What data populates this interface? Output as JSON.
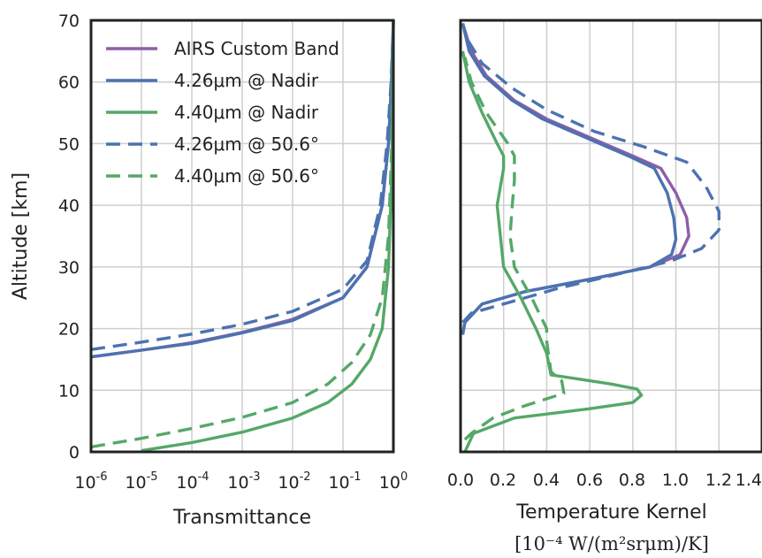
{
  "chart_data": [
    {
      "type": "line",
      "panel": "left",
      "xlabel": "Transmittance",
      "ylabel": "Altitude [km]",
      "xscale": "log",
      "xlim": [
        1e-06,
        1
      ],
      "ylim": [
        0,
        70
      ],
      "xtick_labels": [
        {
          "base": "10",
          "exp": "-6",
          "value": 1e-06
        },
        {
          "base": "10",
          "exp": "-5",
          "value": 1e-05
        },
        {
          "base": "10",
          "exp": "-4",
          "value": 0.0001
        },
        {
          "base": "10",
          "exp": "-3",
          "value": 0.001
        },
        {
          "base": "10",
          "exp": "-2",
          "value": 0.01
        },
        {
          "base": "10",
          "exp": "-1",
          "value": 0.1
        },
        {
          "base": "10",
          "exp": "0",
          "value": 1
        }
      ],
      "ytick_labels": [
        "0",
        "10",
        "20",
        "30",
        "40",
        "50",
        "60",
        "70"
      ],
      "yticks": [
        0,
        10,
        20,
        30,
        40,
        50,
        60,
        70
      ],
      "grid": true,
      "legend_placement": "top-left",
      "series": [
        {
          "name": "AIRS Custom Band",
          "color": "#8d5fa6",
          "dash": "solid",
          "points": [
            [
              1e-06,
              15.4
            ],
            [
              1e-05,
              16.5
            ],
            [
              0.0001,
              17.7
            ],
            [
              0.001,
              19.4
            ],
            [
              0.01,
              21.5
            ],
            [
              0.1,
              25
            ],
            [
              0.3,
              30
            ],
            [
              0.6,
              40
            ],
            [
              0.8,
              50
            ],
            [
              0.92,
              60
            ],
            [
              1,
              70
            ]
          ]
        },
        {
          "name": "4.26μm @ Nadir",
          "color": "#4c72b0",
          "dash": "solid",
          "points": [
            [
              1e-06,
              15.4
            ],
            [
              1e-05,
              16.5
            ],
            [
              0.0001,
              17.6
            ],
            [
              0.001,
              19.3
            ],
            [
              0.01,
              21.3
            ],
            [
              0.1,
              25
            ],
            [
              0.3,
              30
            ],
            [
              0.6,
              40
            ],
            [
              0.8,
              50
            ],
            [
              0.92,
              60
            ],
            [
              1,
              70
            ]
          ]
        },
        {
          "name": "4.40μm @ Nadir",
          "color": "#55a868",
          "dash": "solid",
          "points": [
            [
              1e-05,
              0.2
            ],
            [
              0.0001,
              1.5
            ],
            [
              0.001,
              3.2
            ],
            [
              0.01,
              5.5
            ],
            [
              0.05,
              8
            ],
            [
              0.15,
              11
            ],
            [
              0.35,
              15
            ],
            [
              0.6,
              20
            ],
            [
              0.8,
              30
            ],
            [
              0.93,
              45
            ],
            [
              0.98,
              60
            ],
            [
              1,
              70
            ]
          ]
        },
        {
          "name": "4.26μm @ 50.6°",
          "color": "#4c72b0",
          "dash": "dashed",
          "points": [
            [
              1e-06,
              16.6
            ],
            [
              1e-05,
              17.8
            ],
            [
              0.0001,
              19.1
            ],
            [
              0.001,
              20.7
            ],
            [
              0.01,
              22.8
            ],
            [
              0.1,
              26.4
            ],
            [
              0.3,
              31
            ],
            [
              0.55,
              40
            ],
            [
              0.75,
              50
            ],
            [
              0.9,
              60
            ],
            [
              1,
              70
            ]
          ]
        },
        {
          "name": "4.40μm @ 50.6°",
          "color": "#55a868",
          "dash": "dashed",
          "points": [
            [
              1e-06,
              0.8
            ],
            [
              1e-05,
              2.2
            ],
            [
              0.0001,
              3.8
            ],
            [
              0.001,
              5.6
            ],
            [
              0.01,
              8
            ],
            [
              0.05,
              11
            ],
            [
              0.15,
              14.5
            ],
            [
              0.35,
              19
            ],
            [
              0.6,
              25
            ],
            [
              0.8,
              35
            ],
            [
              0.93,
              50
            ],
            [
              1,
              70
            ]
          ]
        }
      ],
      "legend": [
        {
          "label": "AIRS Custom Band",
          "color": "#8d5fa6",
          "dash": "solid"
        },
        {
          "label": "4.26μm @ Nadir",
          "color": "#4c72b0",
          "dash": "solid"
        },
        {
          "label": "4.40μm @ Nadir",
          "color": "#55a868",
          "dash": "solid"
        },
        {
          "label": "4.26μm @ 50.6°",
          "color": "#4c72b0",
          "dash": "dashed"
        },
        {
          "label": "4.40μm @ 50.6°",
          "color": "#55a868",
          "dash": "dashed"
        }
      ]
    },
    {
      "type": "line",
      "panel": "right",
      "xlabel": "Temperature Kernel",
      "xunit": "[10⁻⁴ W/(m²srμm)/K]",
      "xlim": [
        0,
        1.4
      ],
      "ylim": [
        0,
        70
      ],
      "xticks": [
        0,
        0.2,
        0.4,
        0.6,
        0.8,
        1.0,
        1.2,
        1.4
      ],
      "xtick_labels": [
        "0.0",
        "0.2",
        "0.4",
        "0.6",
        "0.8",
        "1.0",
        "1.2",
        "1.4"
      ],
      "yticks": [
        0,
        10,
        20,
        30,
        40,
        50,
        60,
        70
      ],
      "grid": true,
      "series": [
        {
          "name": "AIRS Custom Band",
          "color": "#8d5fa6",
          "dash": "solid",
          "points": [
            [
              0.01,
              19
            ],
            [
              0.02,
              21
            ],
            [
              0.1,
              24
            ],
            [
              0.3,
              26
            ],
            [
              0.6,
              28
            ],
            [
              0.88,
              30
            ],
            [
              1.02,
              32
            ],
            [
              1.06,
              35
            ],
            [
              1.05,
              38
            ],
            [
              1.0,
              42
            ],
            [
              0.93,
              46
            ],
            [
              0.8,
              48
            ],
            [
              0.6,
              51
            ],
            [
              0.4,
              54
            ],
            [
              0.25,
              57
            ],
            [
              0.12,
              61
            ],
            [
              0.05,
              65
            ],
            [
              0.01,
              69.5
            ]
          ]
        },
        {
          "name": "4.26μm @ Nadir",
          "color": "#4c72b0",
          "dash": "solid",
          "points": [
            [
              0.01,
              19
            ],
            [
              0.02,
              21
            ],
            [
              0.1,
              24
            ],
            [
              0.3,
              26
            ],
            [
              0.6,
              28
            ],
            [
              0.88,
              30
            ],
            [
              0.98,
              32
            ],
            [
              1.0,
              34.5
            ],
            [
              0.99,
              38
            ],
            [
              0.96,
              42
            ],
            [
              0.9,
              46
            ],
            [
              0.78,
              48
            ],
            [
              0.58,
              51
            ],
            [
              0.38,
              54
            ],
            [
              0.24,
              57
            ],
            [
              0.11,
              61
            ],
            [
              0.04,
              65
            ],
            [
              0.01,
              69.5
            ]
          ]
        },
        {
          "name": "4.40μm @ Nadir",
          "color": "#55a868",
          "dash": "solid",
          "points": [
            [
              0.02,
              0
            ],
            [
              0.06,
              3
            ],
            [
              0.25,
              5.5
            ],
            [
              0.6,
              7
            ],
            [
              0.8,
              8
            ],
            [
              0.84,
              9.2
            ],
            [
              0.82,
              10.2
            ],
            [
              0.7,
              11
            ],
            [
              0.55,
              11.8
            ],
            [
              0.42,
              12.5
            ],
            [
              0.4,
              16
            ],
            [
              0.35,
              20
            ],
            [
              0.28,
              25
            ],
            [
              0.2,
              30
            ],
            [
              0.17,
              40
            ],
            [
              0.2,
              46
            ],
            [
              0.2,
              48
            ],
            [
              0.17,
              50
            ],
            [
              0.1,
              55
            ],
            [
              0.04,
              60
            ],
            [
              0.01,
              65
            ]
          ]
        },
        {
          "name": "4.26μm @ 50.6°",
          "color": "#4c72b0",
          "dash": "dashed",
          "points": [
            [
              0.01,
              21
            ],
            [
              0.05,
              22.5
            ],
            [
              0.2,
              24
            ],
            [
              0.45,
              26.5
            ],
            [
              0.75,
              29
            ],
            [
              0.98,
              31
            ],
            [
              1.12,
              33
            ],
            [
              1.2,
              36
            ],
            [
              1.2,
              39
            ],
            [
              1.14,
              43
            ],
            [
              1.05,
              47
            ],
            [
              0.85,
              49.5
            ],
            [
              0.62,
              52
            ],
            [
              0.4,
              55.5
            ],
            [
              0.24,
              59
            ],
            [
              0.1,
              63
            ],
            [
              0.03,
              67
            ],
            [
              0.01,
              69.5
            ]
          ]
        },
        {
          "name": "4.40μm @ 50.6°",
          "color": "#55a868",
          "dash": "dashed",
          "points": [
            [
              0.02,
              2
            ],
            [
              0.05,
              3
            ],
            [
              0.15,
              5.5
            ],
            [
              0.3,
              7.5
            ],
            [
              0.48,
              9.5
            ],
            [
              0.47,
              11.5
            ],
            [
              0.42,
              13
            ],
            [
              0.4,
              18
            ],
            [
              0.4,
              20
            ],
            [
              0.33,
              25
            ],
            [
              0.25,
              30
            ],
            [
              0.23,
              35
            ],
            [
              0.24,
              40
            ],
            [
              0.25,
              44
            ],
            [
              0.25,
              48
            ],
            [
              0.22,
              50
            ],
            [
              0.12,
              55
            ],
            [
              0.05,
              60
            ],
            [
              0.02,
              64
            ]
          ]
        }
      ]
    }
  ]
}
